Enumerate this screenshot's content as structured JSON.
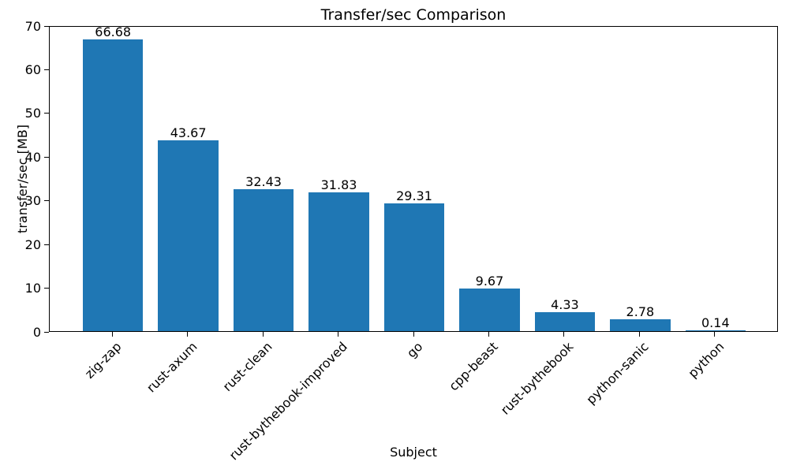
{
  "chart_data": {
    "type": "bar",
    "title": "Transfer/sec Comparison",
    "xlabel": "Subject",
    "ylabel": "transfer/sec [MB]",
    "categories": [
      "zig-zap",
      "rust-axum",
      "rust-clean",
      "rust-bythebook-improved",
      "go",
      "cpp-beast",
      "rust-bythebook",
      "python-sanic",
      "python"
    ],
    "values": [
      66.68,
      43.67,
      32.43,
      31.83,
      29.31,
      9.67,
      4.33,
      2.78,
      0.14
    ],
    "value_labels": [
      "66.68",
      "43.67",
      "32.43",
      "31.83",
      "29.31",
      "9.67",
      "4.33",
      "2.78",
      "0.14"
    ],
    "ylim": [
      0,
      70
    ],
    "yticks": [
      0,
      10,
      20,
      30,
      40,
      50,
      60,
      70
    ],
    "ytick_labels": [
      "0",
      "10",
      "20",
      "30",
      "40",
      "50",
      "60",
      "70"
    ],
    "bar_color": "#1f77b4",
    "grid": false,
    "legend": "none",
    "x_tick_rotation_deg": 45
  }
}
